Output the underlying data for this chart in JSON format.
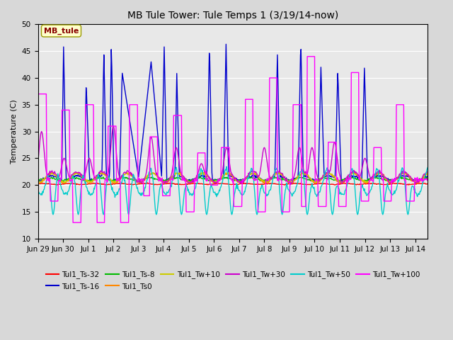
{
  "title": "MB Tule Tower: Tule Temps 1 (3/19/14-now)",
  "ylabel": "Temperature (C)",
  "xlim_days": 15.5,
  "ylim": [
    10,
    50
  ],
  "yticks": [
    10,
    15,
    20,
    25,
    30,
    35,
    40,
    45,
    50
  ],
  "xtick_labels": [
    "Jun 29",
    "Jun 30",
    "Jul 1",
    "Jul 2",
    "Jul 3",
    "Jul 4",
    "Jul 5",
    "Jul 6",
    "Jul 7",
    "Jul 8",
    "Jul 9",
    "Jul 10",
    "Jul 11",
    "Jul 12",
    "Jul 13",
    "Jul 14"
  ],
  "legend_label": "MB_tule",
  "series_labels": [
    "Tul1_Ts-32",
    "Tul1_Ts-16",
    "Tul1_Ts-8",
    "Tul1_Ts0",
    "Tul1_Tw+10",
    "Tul1_Tw+30",
    "Tul1_Tw+50",
    "Tul1_Tw+100"
  ],
  "series_colors": [
    "#ff0000",
    "#0000cc",
    "#00bb00",
    "#ff8800",
    "#cccc00",
    "#cc00cc",
    "#00cccc",
    "#ff00ff"
  ],
  "bg_color": "#e8e8e8",
  "grid_color": "#ffffff",
  "fig_bg": "#d8d8d8"
}
